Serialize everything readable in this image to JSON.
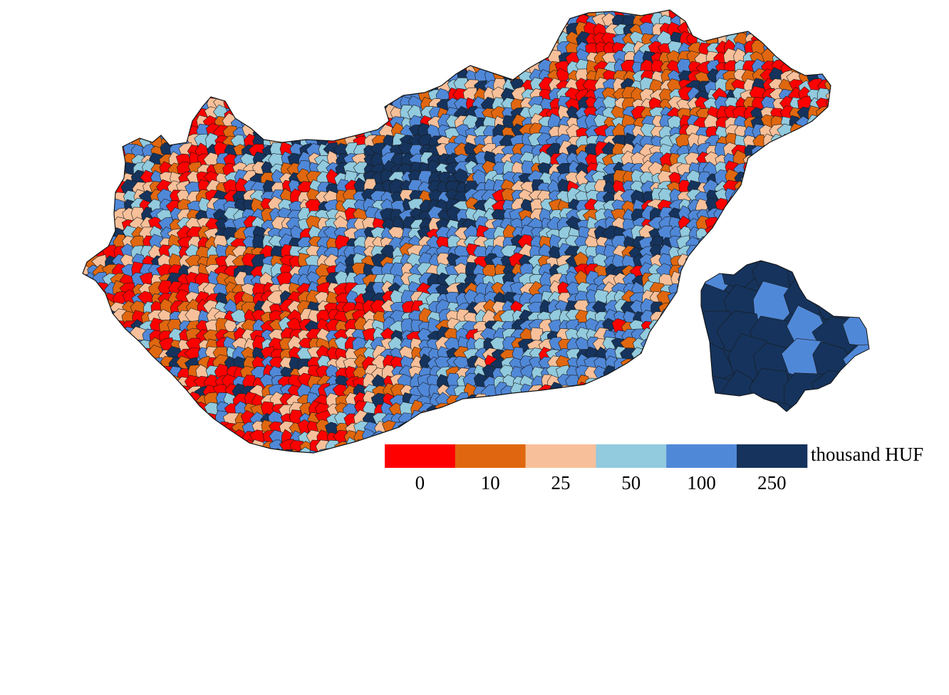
{
  "map": {
    "type": "choropleth",
    "regions": [
      "Hungary municipalities",
      "Budapest districts inset"
    ]
  },
  "legend": {
    "unit": "thousand HUF",
    "classes": [
      {
        "label": "0",
        "color": "#ff0000"
      },
      {
        "label": "10",
        "color": "#e0670f"
      },
      {
        "label": "25",
        "color": "#f7c09a"
      },
      {
        "label": "50",
        "color": "#92cade"
      },
      {
        "label": "100",
        "color": "#5088d8"
      },
      {
        "label": "250",
        "color": "#15335c"
      }
    ]
  },
  "colors": {
    "border": "#1a1a1a",
    "background": "#ffffff"
  }
}
